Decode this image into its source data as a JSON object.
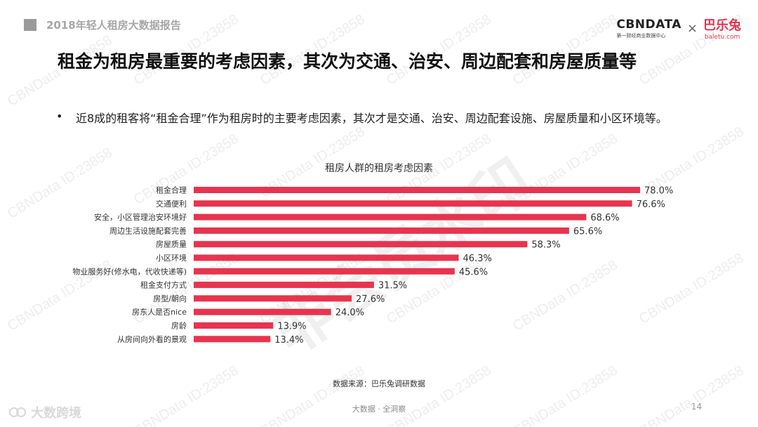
{
  "header": {
    "report_title": "2018年轻人租房大数据报告",
    "brand_cbn": "CBNDATA",
    "brand_cbn_sub": "第一财经商业数据中心",
    "brand_separator": "×",
    "brand_partner": "巴乐兔",
    "brand_partner_sub": "baletu.com"
  },
  "headline": "租金为租房最重要的考虑因素，其次为交通、治安、周边配套和房屋质量等",
  "bullet": {
    "dot": "•",
    "text": "近8成的租客将“租金合理”作为租房时的主要考虑因素，其次才是交通、治安、周边配套设施、房屋质量和小区环境等。"
  },
  "chart_data": {
    "type": "bar",
    "orientation": "horizontal",
    "title": "租房人群的租房考虑因素",
    "categories": [
      "租金合理",
      "交通便利",
      "安全，小区管理治安环境好",
      "周边生活设施配套完善",
      "房屋质量",
      "小区环境",
      "物业服务好(修水电，代收快递等)",
      "租金支付方式",
      "房型/朝向",
      "房东人是否nice",
      "房龄",
      "从房间向外看的景观"
    ],
    "values": [
      78.0,
      76.6,
      68.6,
      65.6,
      58.3,
      46.3,
      45.6,
      31.5,
      27.6,
      24.0,
      13.9,
      13.4
    ],
    "value_labels": [
      "78.0%",
      "76.6%",
      "68.6%",
      "65.6%",
      "58.3%",
      "46.3%",
      "45.6%",
      "31.5%",
      "27.6%",
      "24.0%",
      "13.9%",
      "13.4%"
    ],
    "unit": "%",
    "bar_color": "#e8344e",
    "xlim": [
      0,
      78.0
    ],
    "grid": false,
    "legend": "none"
  },
  "source": "数据来源：巴乐兔调研数据",
  "footer": {
    "center": "大数据 · 全洞察",
    "page": "14",
    "logo_text": "大数跨境"
  },
  "watermark": {
    "text": "CBNData ID:23858",
    "stamp": "非会员水印"
  }
}
